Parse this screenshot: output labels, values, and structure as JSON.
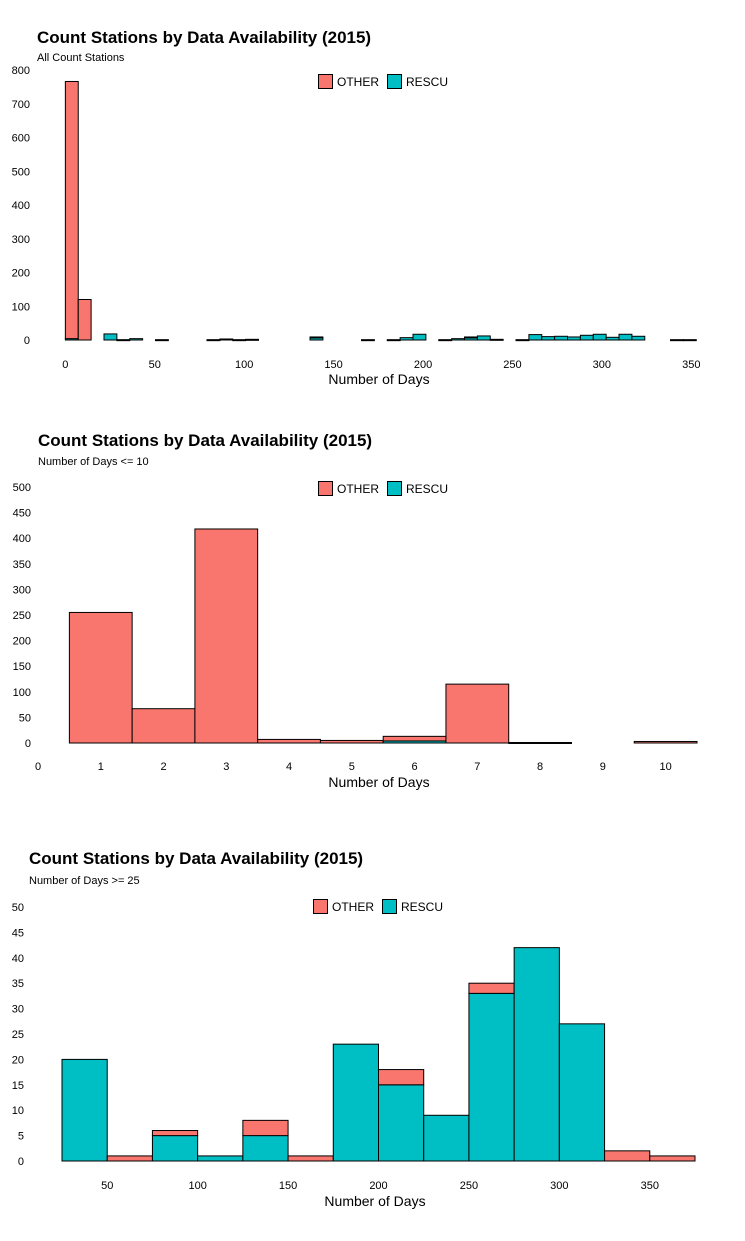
{
  "colors": {
    "other": "#F8766D",
    "rescu": "#00BFC4"
  },
  "legend": {
    "other_label": "OTHER",
    "rescu_label": "RESCU"
  },
  "chart_data": [
    {
      "type": "bar",
      "stacked": true,
      "title": "Count Stations by Data Availability (2015)",
      "subtitle": "All Count Stations",
      "xlabel": "Number of Days",
      "ylabel": "",
      "xlim": [
        -3,
        356
      ],
      "ylim": [
        0,
        800
      ],
      "x_ticks": [
        0,
        50,
        100,
        150,
        200,
        250,
        300,
        350
      ],
      "y_ticks": [
        0,
        100,
        200,
        300,
        400,
        500,
        600,
        700,
        800
      ],
      "bin_width": 7.2,
      "bins": [
        {
          "x0": 0,
          "x1": 7.2,
          "other": 762,
          "rescu": 4
        },
        {
          "x0": 7.2,
          "x1": 14.4,
          "other": 120,
          "rescu": 0
        },
        {
          "x0": 14.4,
          "x1": 21.6,
          "other": 0,
          "rescu": 0
        },
        {
          "x0": 21.6,
          "x1": 28.8,
          "other": 0,
          "rescu": 18
        },
        {
          "x0": 28.8,
          "x1": 36,
          "other": 0,
          "rescu": 1
        },
        {
          "x0": 36,
          "x1": 43.2,
          "other": 0,
          "rescu": 4
        },
        {
          "x0": 50.4,
          "x1": 57.6,
          "other": 0,
          "rescu": 1
        },
        {
          "x0": 79.2,
          "x1": 86.4,
          "other": 0,
          "rescu": 1
        },
        {
          "x0": 86.4,
          "x1": 93.6,
          "other": 0,
          "rescu": 3
        },
        {
          "x0": 93.6,
          "x1": 100.8,
          "other": 0,
          "rescu": 1
        },
        {
          "x0": 100.8,
          "x1": 108,
          "other": 0,
          "rescu": 2
        },
        {
          "x0": 136.8,
          "x1": 144,
          "other": 2,
          "rescu": 7
        },
        {
          "x0": 165.6,
          "x1": 172.8,
          "other": 0,
          "rescu": 1
        },
        {
          "x0": 180,
          "x1": 187.2,
          "other": 0,
          "rescu": 1
        },
        {
          "x0": 187.2,
          "x1": 194.4,
          "other": 0,
          "rescu": 7
        },
        {
          "x0": 194.4,
          "x1": 201.6,
          "other": 0,
          "rescu": 17
        },
        {
          "x0": 208.8,
          "x1": 216,
          "other": 0,
          "rescu": 1
        },
        {
          "x0": 216,
          "x1": 223.2,
          "other": 0,
          "rescu": 4
        },
        {
          "x0": 223.2,
          "x1": 230.4,
          "other": 2,
          "rescu": 7
        },
        {
          "x0": 230.4,
          "x1": 237.6,
          "other": 0,
          "rescu": 12
        },
        {
          "x0": 237.6,
          "x1": 244.8,
          "other": 0,
          "rescu": 2
        },
        {
          "x0": 252,
          "x1": 259.2,
          "other": 0,
          "rescu": 1
        },
        {
          "x0": 259.2,
          "x1": 266.4,
          "other": 0,
          "rescu": 16
        },
        {
          "x0": 266.4,
          "x1": 273.6,
          "other": 0,
          "rescu": 10
        },
        {
          "x0": 273.6,
          "x1": 280.8,
          "other": 0,
          "rescu": 11
        },
        {
          "x0": 280.8,
          "x1": 288,
          "other": 0,
          "rescu": 9
        },
        {
          "x0": 288,
          "x1": 295.2,
          "other": 0,
          "rescu": 14
        },
        {
          "x0": 295.2,
          "x1": 302.4,
          "other": 0,
          "rescu": 17
        },
        {
          "x0": 302.4,
          "x1": 309.6,
          "other": 0,
          "rescu": 8
        },
        {
          "x0": 309.6,
          "x1": 316.8,
          "other": 0,
          "rescu": 17
        },
        {
          "x0": 316.8,
          "x1": 324,
          "other": 0,
          "rescu": 11
        },
        {
          "x0": 338.4,
          "x1": 345.6,
          "other": 0,
          "rescu": 1
        },
        {
          "x0": 345.6,
          "x1": 352.8,
          "other": 0,
          "rescu": 1
        }
      ]
    },
    {
      "type": "bar",
      "stacked": true,
      "title": "Count Stations by Data Availability (2015)",
      "subtitle": "Number of Days <= 10",
      "xlabel": "Number of Days",
      "ylabel": "",
      "xlim": [
        0,
        10.5
      ],
      "ylim": [
        0,
        500
      ],
      "x_ticks": [
        0,
        1,
        2,
        3,
        4,
        5,
        6,
        7,
        8,
        9,
        10
      ],
      "y_ticks": [
        0,
        50,
        100,
        150,
        200,
        250,
        300,
        350,
        400,
        450,
        500
      ],
      "bins": [
        {
          "x0": 0.5,
          "x1": 1.5,
          "other": 255,
          "rescu": 0
        },
        {
          "x0": 1.5,
          "x1": 2.5,
          "other": 67,
          "rescu": 0
        },
        {
          "x0": 2.5,
          "x1": 3.5,
          "other": 418,
          "rescu": 0
        },
        {
          "x0": 3.5,
          "x1": 4.5,
          "other": 7,
          "rescu": 0
        },
        {
          "x0": 4.5,
          "x1": 5.5,
          "other": 5,
          "rescu": 0
        },
        {
          "x0": 5.5,
          "x1": 6.5,
          "other": 9,
          "rescu": 4
        },
        {
          "x0": 6.5,
          "x1": 7.5,
          "other": 115,
          "rescu": 0
        },
        {
          "x0": 7.5,
          "x1": 8.5,
          "other": 1,
          "rescu": 0
        },
        {
          "x0": 9.5,
          "x1": 10.5,
          "other": 3,
          "rescu": 0
        }
      ]
    },
    {
      "type": "bar",
      "stacked": true,
      "title": "Count Stations by Data Availability (2015)",
      "subtitle": "Number of Days >= 25",
      "xlabel": "Number of Days",
      "ylabel": "",
      "xlim": [
        25,
        375
      ],
      "ylim": [
        0,
        50
      ],
      "x_ticks": [
        50,
        100,
        150,
        200,
        250,
        300,
        350
      ],
      "y_ticks": [
        0,
        5,
        10,
        15,
        20,
        25,
        30,
        35,
        40,
        45,
        50
      ],
      "bins": [
        {
          "x0": 25,
          "x1": 50,
          "other": 0,
          "rescu": 20
        },
        {
          "x0": 50,
          "x1": 75,
          "other": 1,
          "rescu": 0
        },
        {
          "x0": 75,
          "x1": 100,
          "other": 1,
          "rescu": 5
        },
        {
          "x0": 100,
          "x1": 125,
          "other": 0,
          "rescu": 1
        },
        {
          "x0": 125,
          "x1": 150,
          "other": 3,
          "rescu": 5
        },
        {
          "x0": 150,
          "x1": 175,
          "other": 1,
          "rescu": 0
        },
        {
          "x0": 175,
          "x1": 200,
          "other": 0,
          "rescu": 23
        },
        {
          "x0": 200,
          "x1": 225,
          "other": 3,
          "rescu": 15
        },
        {
          "x0": 225,
          "x1": 250,
          "other": 0,
          "rescu": 9
        },
        {
          "x0": 250,
          "x1": 275,
          "other": 2,
          "rescu": 33
        },
        {
          "x0": 275,
          "x1": 300,
          "other": 0,
          "rescu": 42
        },
        {
          "x0": 300,
          "x1": 325,
          "other": 0,
          "rescu": 27
        },
        {
          "x0": 325,
          "x1": 350,
          "other": 2,
          "rescu": 0
        },
        {
          "x0": 350,
          "x1": 375,
          "other": 1,
          "rescu": 0
        }
      ]
    }
  ]
}
